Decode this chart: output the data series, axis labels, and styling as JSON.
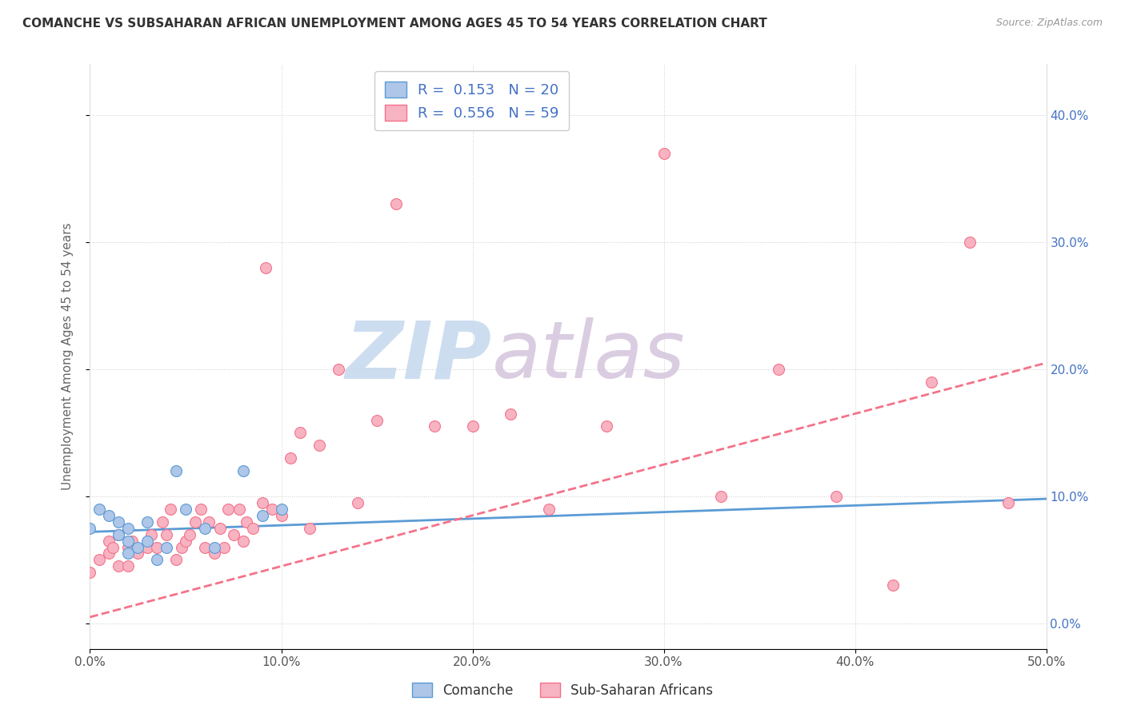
{
  "title": "COMANCHE VS SUBSAHARAN AFRICAN UNEMPLOYMENT AMONG AGES 45 TO 54 YEARS CORRELATION CHART",
  "source": "Source: ZipAtlas.com",
  "ylabel": "Unemployment Among Ages 45 to 54 years",
  "xlim": [
    0.0,
    0.5
  ],
  "ylim": [
    -0.02,
    0.44
  ],
  "xticks": [
    0.0,
    0.1,
    0.2,
    0.3,
    0.4,
    0.5
  ],
  "yticks": [
    0.0,
    0.1,
    0.2,
    0.3,
    0.4
  ],
  "comanche_R": 0.153,
  "comanche_N": 20,
  "subsaharan_R": 0.556,
  "subsaharan_N": 59,
  "comanche_color": "#aec6e8",
  "subsaharan_color": "#f7b3c2",
  "comanche_line_color": "#5b9bd5",
  "subsaharan_line_color": "#f4728a",
  "background_color": "#ffffff",
  "watermark_zip": "ZIP",
  "watermark_atlas": "atlas",
  "watermark_color_zip": "#c5d8ee",
  "watermark_color_atlas": "#d4c5dc",
  "comanche_x": [
    0.0,
    0.005,
    0.01,
    0.015,
    0.015,
    0.02,
    0.02,
    0.02,
    0.025,
    0.03,
    0.03,
    0.035,
    0.04,
    0.045,
    0.05,
    0.06,
    0.065,
    0.08,
    0.09,
    0.1
  ],
  "comanche_y": [
    0.075,
    0.09,
    0.085,
    0.07,
    0.08,
    0.055,
    0.065,
    0.075,
    0.06,
    0.065,
    0.08,
    0.05,
    0.06,
    0.12,
    0.09,
    0.075,
    0.06,
    0.12,
    0.085,
    0.09
  ],
  "subsaharan_x": [
    0.0,
    0.005,
    0.01,
    0.01,
    0.012,
    0.015,
    0.015,
    0.02,
    0.02,
    0.022,
    0.025,
    0.03,
    0.032,
    0.035,
    0.038,
    0.04,
    0.042,
    0.045,
    0.048,
    0.05,
    0.052,
    0.055,
    0.058,
    0.06,
    0.062,
    0.065,
    0.068,
    0.07,
    0.072,
    0.075,
    0.078,
    0.08,
    0.082,
    0.085,
    0.09,
    0.092,
    0.095,
    0.1,
    0.105,
    0.11,
    0.115,
    0.12,
    0.13,
    0.14,
    0.15,
    0.16,
    0.18,
    0.2,
    0.22,
    0.24,
    0.27,
    0.3,
    0.33,
    0.36,
    0.39,
    0.42,
    0.44,
    0.46,
    0.48
  ],
  "subsaharan_y": [
    0.04,
    0.05,
    0.055,
    0.065,
    0.06,
    0.045,
    0.07,
    0.045,
    0.06,
    0.065,
    0.055,
    0.06,
    0.07,
    0.06,
    0.08,
    0.07,
    0.09,
    0.05,
    0.06,
    0.065,
    0.07,
    0.08,
    0.09,
    0.06,
    0.08,
    0.055,
    0.075,
    0.06,
    0.09,
    0.07,
    0.09,
    0.065,
    0.08,
    0.075,
    0.095,
    0.28,
    0.09,
    0.085,
    0.13,
    0.15,
    0.075,
    0.14,
    0.2,
    0.095,
    0.16,
    0.33,
    0.155,
    0.155,
    0.165,
    0.09,
    0.155,
    0.37,
    0.1,
    0.2,
    0.1,
    0.03,
    0.19,
    0.3,
    0.095
  ],
  "comanche_trendline_x": [
    0.0,
    0.5
  ],
  "comanche_trendline_y": [
    0.072,
    0.098
  ],
  "subsaharan_trendline_x": [
    0.0,
    0.5
  ],
  "subsaharan_trendline_y": [
    0.005,
    0.205
  ]
}
